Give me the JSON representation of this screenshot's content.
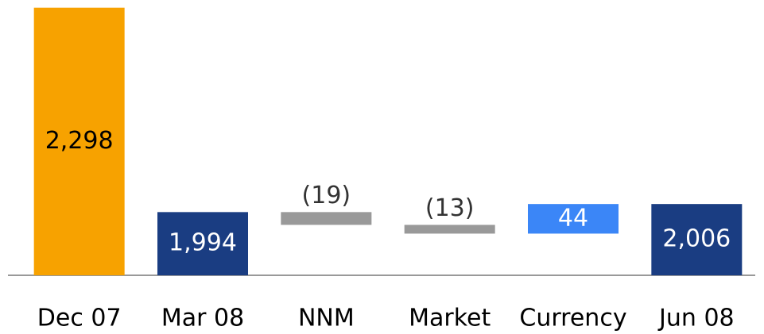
{
  "chart_data": {
    "type": "waterfall",
    "categories": [
      "Dec 07",
      "Mar 08",
      "NNM",
      "Market",
      "Currency",
      "Jun 08"
    ],
    "values": [
      2298,
      1994,
      -19,
      -13,
      44,
      2006
    ],
    "value_labels": [
      "2,298",
      "1,994",
      "(19)",
      "(13)",
      "44",
      "2,006"
    ],
    "measure": [
      "absolute",
      "absolute",
      "relative",
      "relative",
      "relative",
      "absolute"
    ],
    "colors": [
      "#f7a200",
      "#1a3d82",
      "#999999",
      "#999999",
      "#3b86f7",
      "#1a3d82"
    ],
    "label_colors": [
      "#000000",
      "#ffffff",
      "#ffffff",
      "#ffffff",
      "#ffffff",
      "#ffffff"
    ],
    "ylim": [
      1900,
      2300
    ]
  }
}
